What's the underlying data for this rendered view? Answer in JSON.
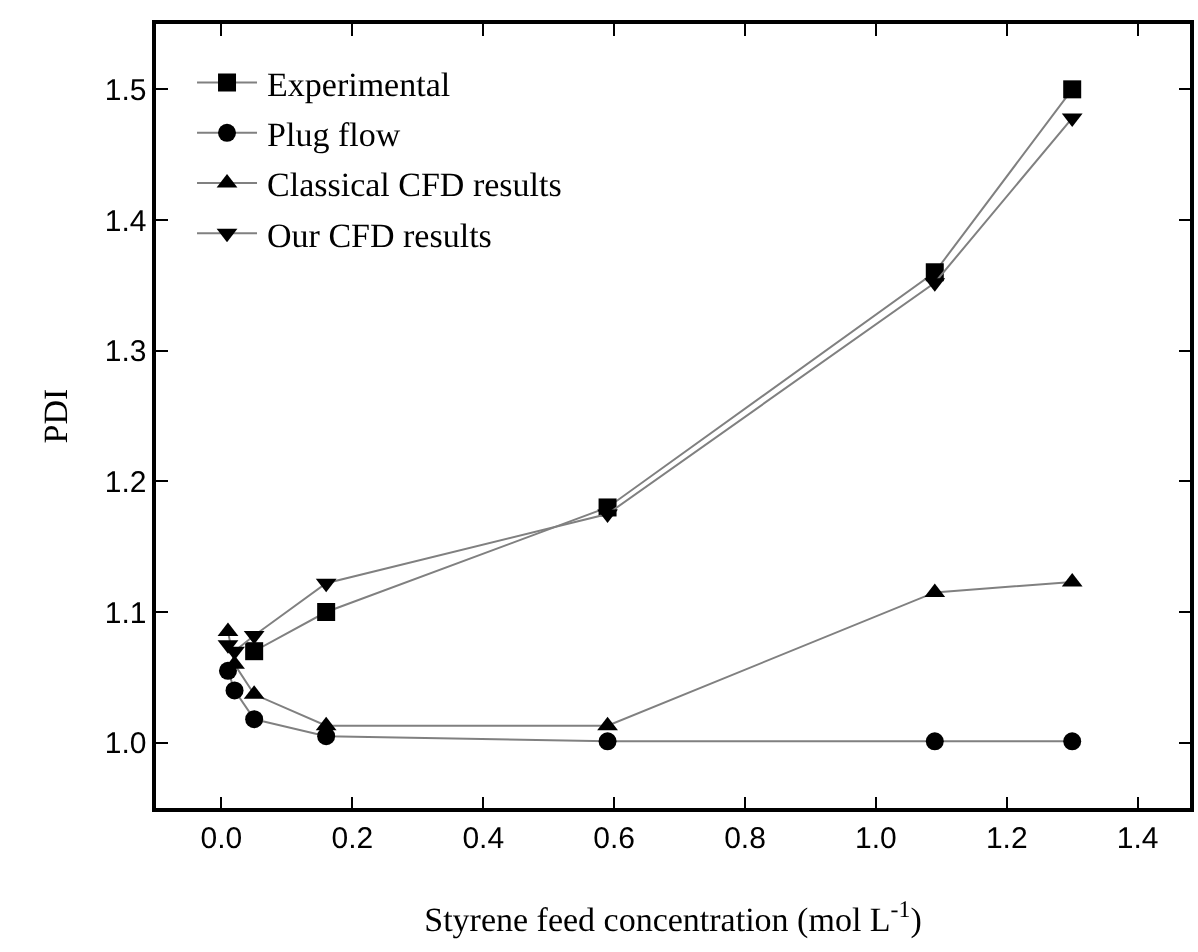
{
  "chart_data": {
    "type": "line",
    "xlabel": "Styrene feed concentration (mol L$^{-1}$)",
    "ylabel": "PDI",
    "x": [
      0.01,
      0.02,
      0.05,
      0.16,
      0.59,
      1.09,
      1.3
    ],
    "series": [
      {
        "name": "Experimental",
        "color": "#000000",
        "marker": "square",
        "values": [
          null,
          null,
          1.07,
          1.1,
          1.18,
          1.36,
          1.5
        ]
      },
      {
        "name": "Plug flow",
        "color": "#000000",
        "marker": "circle",
        "values": [
          1.055,
          1.04,
          1.018,
          1.005,
          1.001,
          1.001,
          1.001
        ]
      },
      {
        "name": "Classical CFD results",
        "color": "#000000",
        "marker": "triangle",
        "values": [
          1.085,
          1.06,
          1.037,
          1.013,
          1.013,
          1.115,
          1.123
        ]
      },
      {
        "name": "Our CFD results",
        "color": "#000000",
        "marker": "triangle-down",
        "values": [
          1.075,
          1.07,
          1.082,
          1.122,
          1.175,
          1.352,
          1.478
        ]
      }
    ],
    "xlim": [
      -0.1,
      1.48
    ],
    "xticks": [
      {
        "value": 0,
        "label": "0.0"
      },
      0.2,
      0.4,
      0.6,
      0.8,
      {
        "value": 1,
        "label": "1.0"
      },
      1.2,
      1.4
    ],
    "ylim": [
      0.95,
      1.55
    ],
    "yticks": [
      {
        "value": 1,
        "label": "1.0"
      },
      1.1,
      1.2,
      1.3,
      1.4,
      1.5
    ],
    "grid": false,
    "legend": "top left"
  }
}
